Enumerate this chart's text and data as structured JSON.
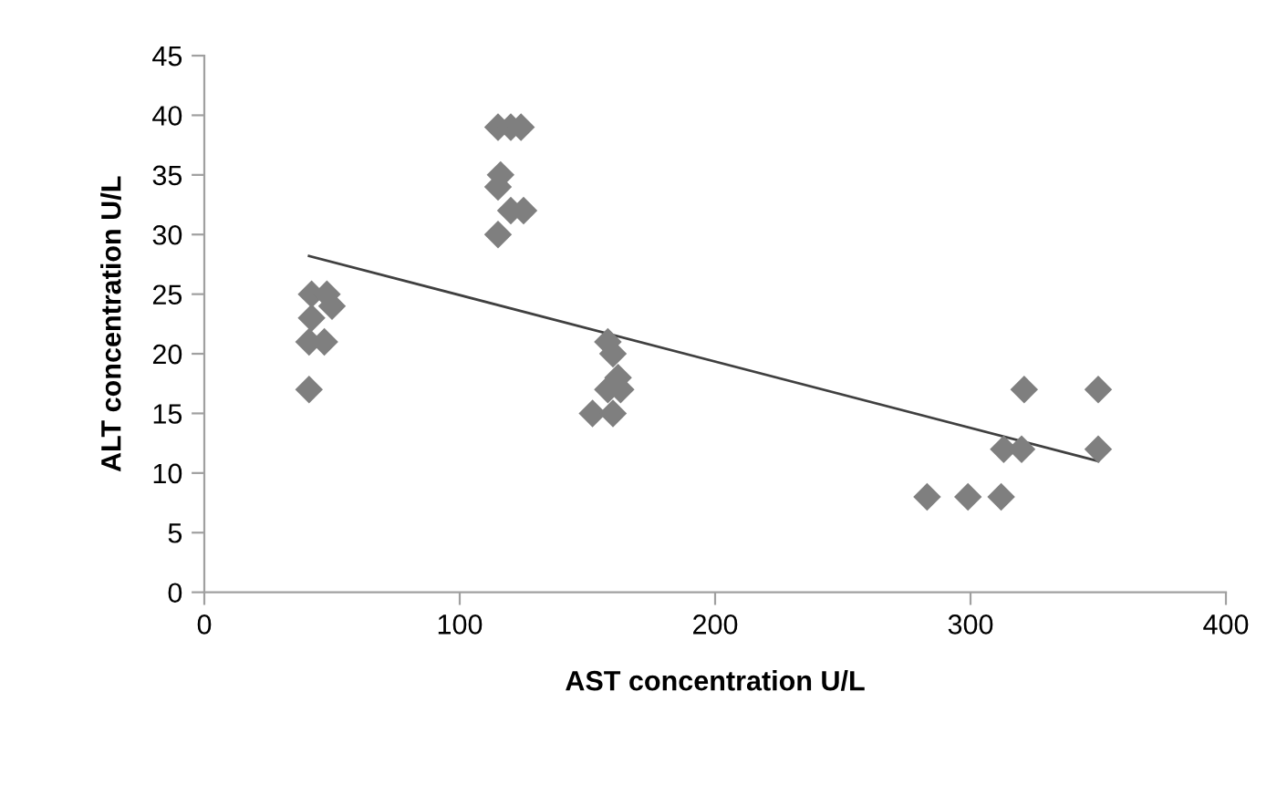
{
  "chart_data": {
    "type": "scatter",
    "xlabel": "AST concentration U/L",
    "ylabel": "ALT concentration U/L",
    "xlim": [
      0,
      400
    ],
    "ylim": [
      0,
      45
    ],
    "xticks": [
      0,
      100,
      200,
      300,
      400
    ],
    "yticks": [
      0,
      5,
      10,
      15,
      20,
      25,
      30,
      35,
      40,
      45
    ],
    "grid": false,
    "legend": false,
    "marker": "diamond",
    "series": [
      {
        "color": "#7f7f7f",
        "x": [
          41,
          41,
          47,
          42,
          42,
          45,
          48,
          50,
          115,
          120,
          124,
          116,
          115,
          115,
          120,
          125,
          152,
          160,
          158,
          160,
          158,
          163,
          162,
          283,
          299,
          312,
          313,
          320,
          321,
          350,
          350
        ],
        "values": [
          17,
          21,
          21,
          23,
          25,
          null,
          25,
          24,
          39,
          39,
          39,
          35,
          34,
          30,
          32,
          32,
          15,
          15,
          21,
          20,
          17,
          17,
          18,
          8,
          8,
          8,
          12,
          12,
          17,
          17,
          12
        ]
      },
      {
        "type": "line",
        "marker": "none",
        "color": "#404040",
        "x": [
          41,
          350
        ],
        "values": [
          28.2,
          11
        ]
      }
    ]
  }
}
